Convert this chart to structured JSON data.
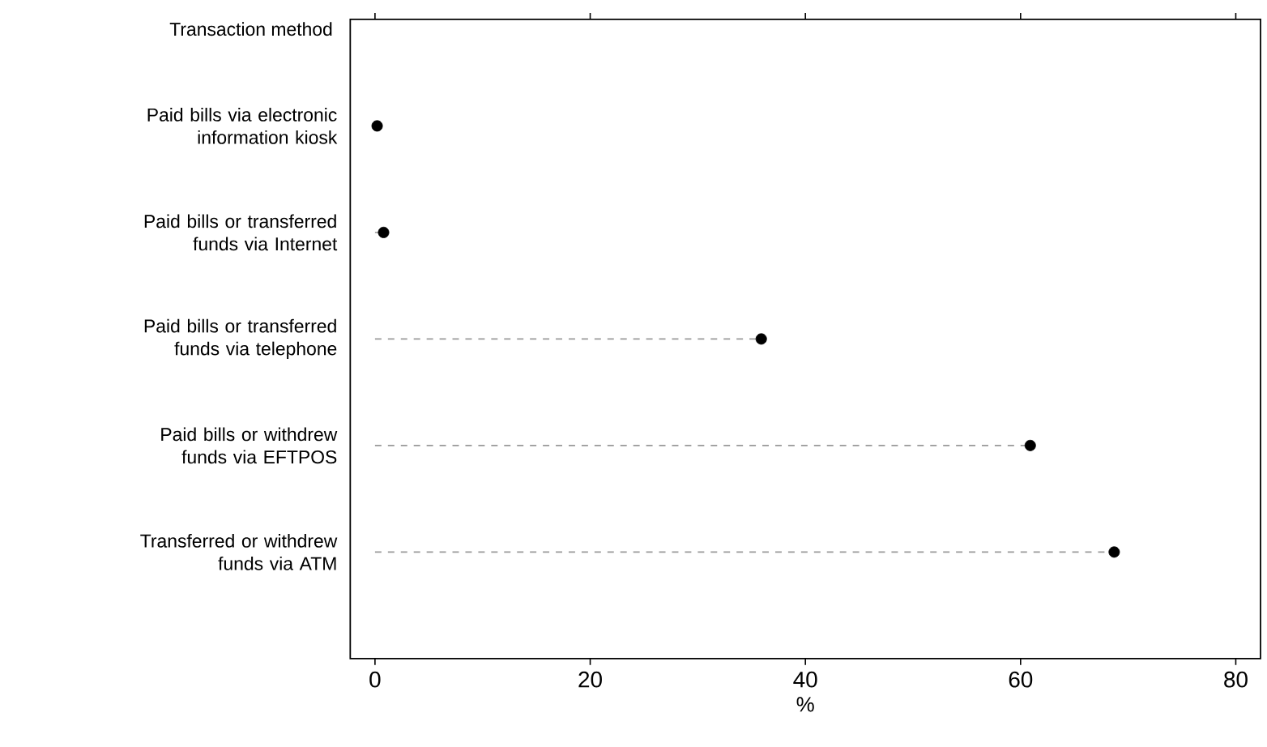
{
  "chart_data": {
    "type": "lollipop",
    "orientation": "horizontal",
    "ylabel": "Transaction method",
    "xlabel": "%",
    "categories": [
      "Paid bills via electronic information kiosk",
      "Paid bills or transferred funds via Internet",
      "Paid bills or transferred funds via telephone",
      "Paid bills or withdrew funds via EFTPOS",
      "Transferred or withdrew funds via ATM"
    ],
    "series": [
      {
        "color": "#000000",
        "values": [
          0.2,
          0.8,
          35.9,
          60.9,
          68.7
        ]
      }
    ],
    "xlim": [
      -2.3,
      82.3
    ],
    "xticks": [
      0,
      20,
      40,
      60,
      80
    ],
    "line_style": "dashed",
    "grid": false,
    "legend": false
  }
}
